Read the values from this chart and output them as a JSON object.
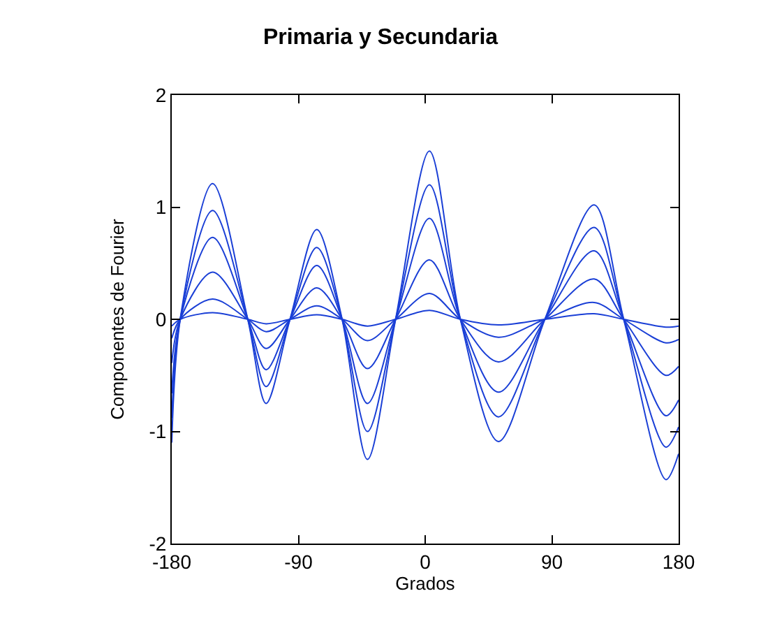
{
  "chart_data": {
    "type": "line",
    "title": "Primaria y Secundaria",
    "xlabel": "Grados",
    "ylabel": "Componentes de Fourier",
    "x": [
      -180,
      -174,
      -151,
      -126,
      -113,
      -96,
      -77,
      -59,
      -41,
      -21,
      3,
      25,
      52,
      85,
      120,
      141,
      171,
      180
    ],
    "series": [
      {
        "color": "#1a3fd6",
        "values": [
          -1.1,
          0,
          1.21,
          0,
          -0.75,
          0,
          0.8,
          0,
          -1.25,
          0,
          1.5,
          0,
          -1.09,
          0,
          1.02,
          0,
          -1.43,
          -1.2
        ]
      },
      {
        "color": "#1a3fd6",
        "values": [
          -0.88,
          0,
          0.97,
          0,
          -0.6,
          0,
          0.64,
          0,
          -1.0,
          0,
          1.2,
          0,
          -0.87,
          0,
          0.82,
          0,
          -1.14,
          -0.96
        ]
      },
      {
        "color": "#1a3fd6",
        "values": [
          -0.66,
          0,
          0.73,
          0,
          -0.45,
          0,
          0.48,
          0,
          -0.75,
          0,
          0.9,
          0,
          -0.65,
          0,
          0.61,
          0,
          -0.86,
          -0.72
        ]
      },
      {
        "color": "#1a3fd6",
        "values": [
          -0.39,
          0,
          0.42,
          0,
          -0.26,
          0,
          0.28,
          0,
          -0.44,
          0,
          0.53,
          0,
          -0.38,
          0,
          0.36,
          0,
          -0.5,
          -0.42
        ]
      },
      {
        "color": "#1a3fd6",
        "values": [
          -0.17,
          0,
          0.18,
          0,
          -0.11,
          0,
          0.12,
          0,
          -0.19,
          0,
          0.23,
          0,
          -0.16,
          0,
          0.15,
          0,
          -0.21,
          -0.18
        ]
      },
      {
        "color": "#1a3fd6",
        "values": [
          -0.06,
          0,
          0.06,
          0,
          -0.04,
          0,
          0.04,
          0,
          -0.06,
          0,
          0.08,
          0,
          -0.05,
          0,
          0.05,
          0,
          -0.07,
          -0.06
        ]
      }
    ],
    "xlim": [
      -180,
      180
    ],
    "xticks": [
      -180,
      -90,
      0,
      90,
      180
    ],
    "ylim": [
      -2,
      2
    ],
    "yticks": [
      -2,
      -1,
      0,
      1,
      2
    ],
    "grid": false,
    "marker": "none",
    "line_style": "solid"
  }
}
